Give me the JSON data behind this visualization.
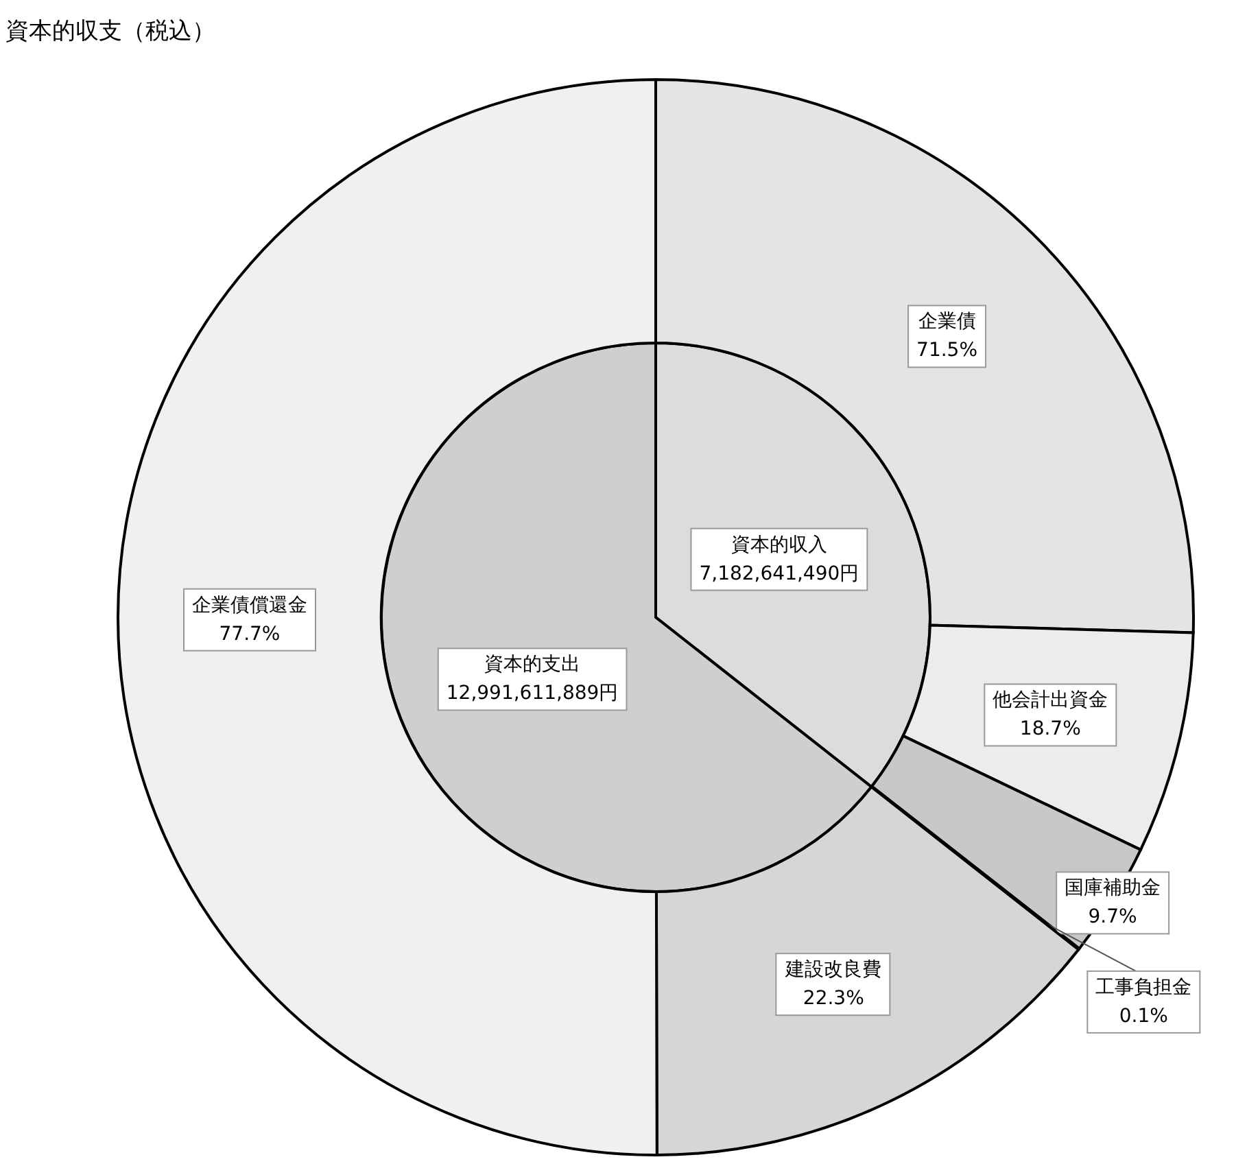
{
  "chart_data": [
    {
      "type": "pie",
      "title": "資本的収支（税込）",
      "categories": [
        "資本的収入",
        "資本的支出"
      ],
      "values": [
        7182641490,
        12991611889
      ],
      "value_labels": [
        "7,182,641,490円",
        "12,991,611,889円"
      ],
      "colors": [
        "#dcdcdc",
        "#cfcfcf"
      ]
    },
    {
      "type": "donut",
      "categories": [
        "企業債",
        "他会計出資金",
        "国庫補助金",
        "工事負担金"
      ],
      "values": [
        71.5,
        18.7,
        9.7,
        0.1
      ],
      "value_labels": [
        "71.5%",
        "18.7%",
        "9.7%",
        "0.1%"
      ],
      "colors": [
        "#e4e4e4",
        "#ececec",
        "#c8c8c8",
        "#9a9a9a"
      ]
    },
    {
      "type": "donut",
      "categories": [
        "建設改良費",
        "企業債償還金"
      ],
      "values": [
        22.3,
        77.7
      ],
      "value_labels": [
        "22.3%",
        "77.7%"
      ],
      "colors": [
        "#d6d6d6",
        "#f0f0f0"
      ]
    }
  ]
}
